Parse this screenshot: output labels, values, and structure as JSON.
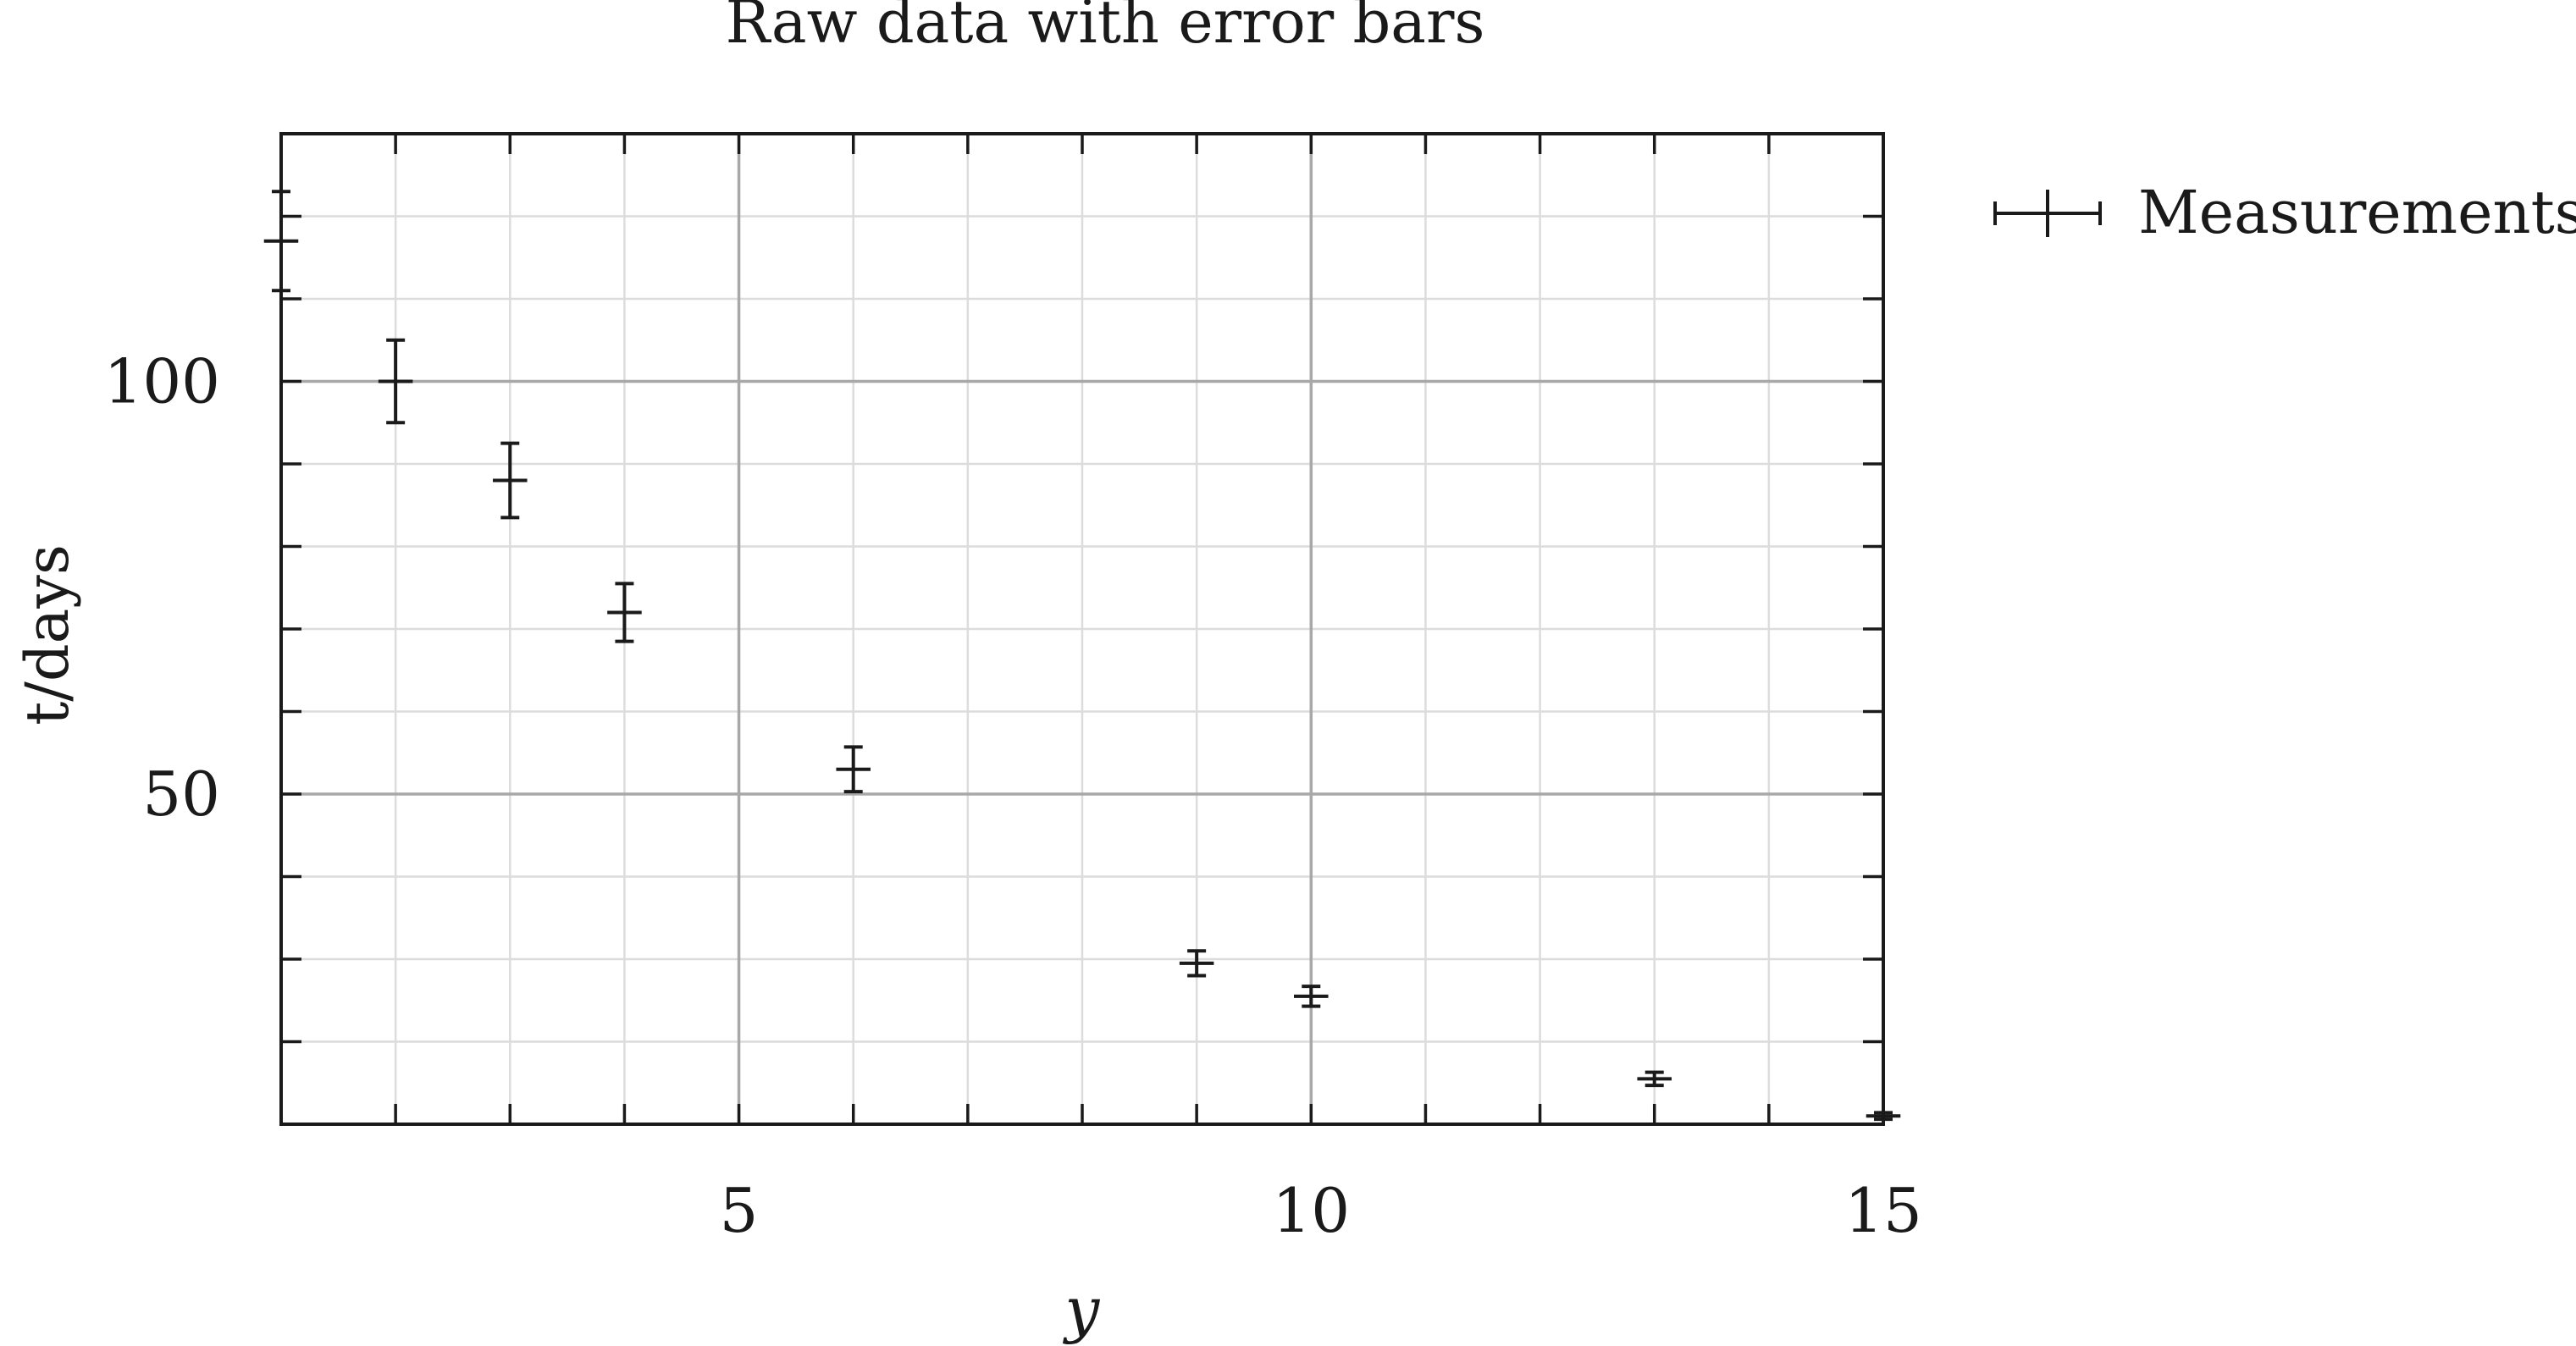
{
  "chart_data": {
    "type": "scatter",
    "title": "Raw data with error bars",
    "xlabel": "y",
    "ylabel": "t/days",
    "xlim": [
      1,
      15
    ],
    "ylim": [
      10,
      130
    ],
    "x_major_ticks": [
      5,
      10,
      15
    ],
    "x_minor_ticks": [
      1,
      2,
      3,
      4,
      5,
      6,
      7,
      8,
      9,
      10,
      11,
      12,
      13,
      14,
      15
    ],
    "y_major_ticks": [
      50,
      100
    ],
    "y_minor_ticks": [
      20,
      30,
      40,
      50,
      60,
      70,
      80,
      90,
      100,
      110,
      120
    ],
    "grid": true,
    "legend_position": "outside-top-right",
    "series": [
      {
        "name": "Measurements",
        "color": "#1a1a1a",
        "points": [
          {
            "x": 1,
            "y": 117,
            "xerr": 0.15,
            "yerr": 6
          },
          {
            "x": 2,
            "y": 100,
            "xerr": 0.15,
            "yerr": 5
          },
          {
            "x": 3,
            "y": 88,
            "xerr": 0.15,
            "yerr": 4.5
          },
          {
            "x": 4,
            "y": 72,
            "xerr": 0.15,
            "yerr": 3.5
          },
          {
            "x": 6,
            "y": 53,
            "xerr": 0.15,
            "yerr": 2.7
          },
          {
            "x": 9,
            "y": 29.5,
            "xerr": 0.15,
            "yerr": 1.5
          },
          {
            "x": 10,
            "y": 25.5,
            "xerr": 0.15,
            "yerr": 1.2
          },
          {
            "x": 13,
            "y": 15.5,
            "xerr": 0.15,
            "yerr": 0.8
          },
          {
            "x": 15,
            "y": 11,
            "xerr": 0.15,
            "yerr": 0.4
          }
        ]
      }
    ]
  }
}
